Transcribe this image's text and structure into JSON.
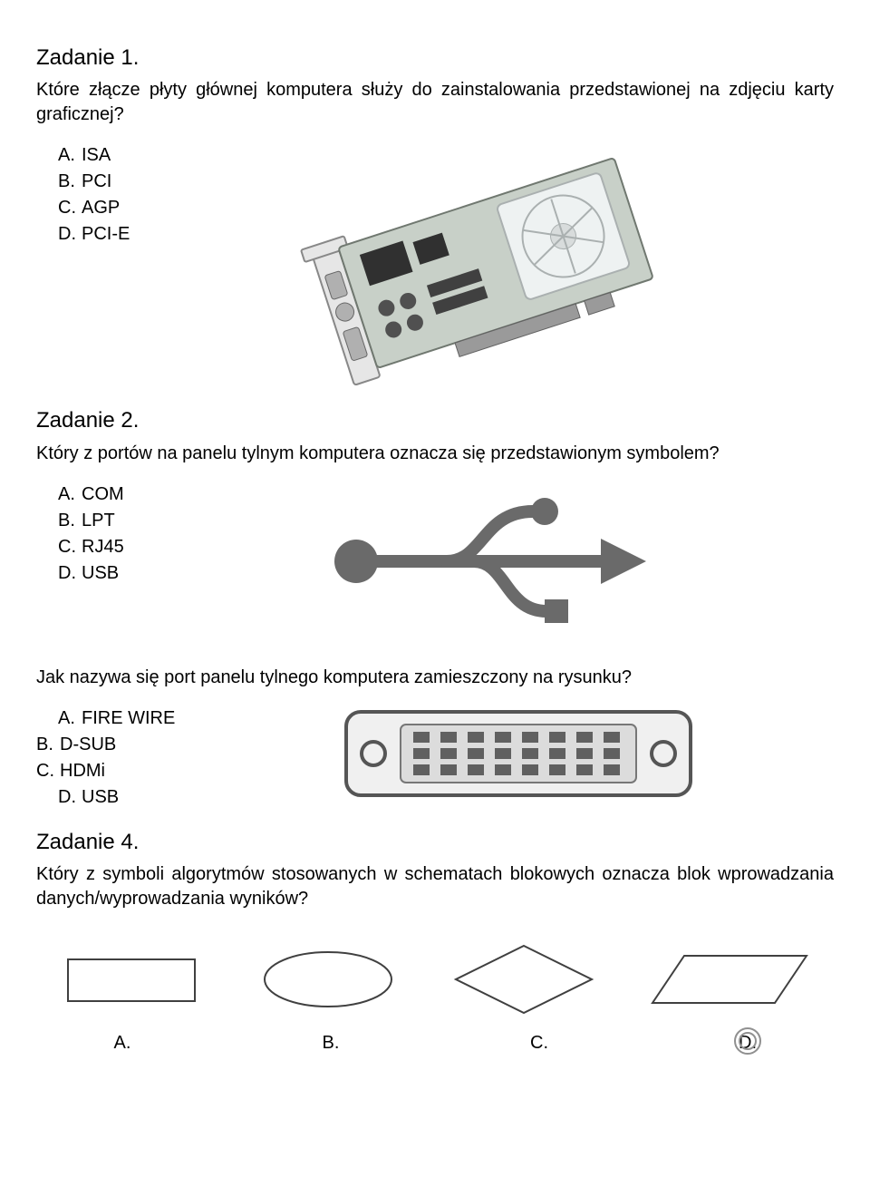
{
  "task1": {
    "title": "Zadanie 1.",
    "question": "Które złącze płyty głównej komputera służy do zainstalowania przedstawionej na zdjęciu karty graficznej?",
    "opts": {
      "A": "ISA",
      "B": "PCI",
      "C": "AGP",
      "D": "PCI-E"
    },
    "image": {
      "pcb_fill": "#c8d0c8",
      "pcb_stroke": "#707870",
      "bracket_fill": "#e6e6e6",
      "bracket_stroke": "#888888",
      "fan_fill": "#eef2f2",
      "fan_stroke": "#aab0b0",
      "chip_fill": "#303030",
      "cap_fill": "#505050",
      "connector_fill": "#9a9a9a",
      "connector_stroke": "#606060"
    }
  },
  "task2": {
    "title": "Zadanie 2.",
    "question": "Który z portów na panelu tylnym komputera oznacza się przedstawionym symbolem?",
    "opts": {
      "A": "COM",
      "B": "LPT",
      "C": "RJ45",
      "D": "USB"
    },
    "image": {
      "stroke": "#6a6a6a",
      "fill": "#6a6a6a",
      "linewidth": 14
    }
  },
  "task3": {
    "question": "Jak nazywa się port panelu tylnego komputera zamieszczony na rysunku?",
    "opts": {
      "A": "FIRE WIRE",
      "B": "D-SUB",
      "C": "HDMi",
      "D": "USB"
    },
    "image": {
      "outer_fill": "#f0f0f0",
      "outer_stroke": "#555555",
      "inner_fill": "#dcdcdc",
      "pin_fill": "#606060",
      "pin_cols": 8,
      "pin_rows": 3
    }
  },
  "task4": {
    "title": "Zadanie 4.",
    "question": "Który z symboli algorytmów stosowanych w schematach blokowych oznacza blok wprowadzania danych/wyprowadzania wyników?",
    "labels": {
      "A": "A.",
      "B": "B.",
      "C": "C.",
      "D": "D."
    },
    "shapes": {
      "stroke": "#404040",
      "fill": "none",
      "linewidth": 2,
      "circle_stroke": "#909090"
    }
  },
  "labels": {
    "A": "A.",
    "B": "B.",
    "C": "C.",
    "D": "D."
  }
}
